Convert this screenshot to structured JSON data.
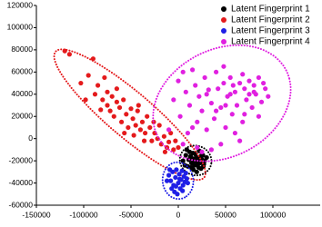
{
  "chart_data": {
    "type": "scatter",
    "xlim": [
      -150000,
      150000
    ],
    "ylim": [
      -60000,
      120000
    ],
    "xticks": [
      -150000,
      -100000,
      -50000,
      0,
      50000,
      100000
    ],
    "yticks": [
      -60000,
      -40000,
      -20000,
      0,
      20000,
      40000,
      60000,
      80000,
      100000,
      120000
    ],
    "legend": "upper right",
    "series": [
      {
        "name": "Latent Fingerprint 1",
        "color": "#000000",
        "x": [
          5000,
          8000,
          10000,
          12000,
          14000,
          15000,
          16000,
          18000,
          19000,
          20000,
          21000,
          22000,
          23000,
          24000,
          25000,
          26000,
          27000,
          28000,
          11000,
          13000,
          17000,
          19500,
          22500,
          9000,
          15500,
          24500,
          18500,
          20500,
          13500,
          26500,
          30000,
          7000,
          21500,
          16500,
          23500
        ],
        "values": [
          -20000,
          -15000,
          -25000,
          -12000,
          -22000,
          -18000,
          -28000,
          -14000,
          -20000,
          -24000,
          -17000,
          -11000,
          -22000,
          -27000,
          -19000,
          -15000,
          -23000,
          -20000,
          -19000,
          -16000,
          -24000,
          -30000,
          -19000,
          -10000,
          -13000,
          -12000,
          -17500,
          -21500,
          -26000,
          -25000,
          -17000,
          -24000,
          -26000,
          -20500,
          -16000
        ]
      },
      {
        "name": "Latent Fingerprint 2",
        "color": "#e41a1c",
        "x": [
          -120000,
          -115000,
          -103000,
          -95000,
          -90000,
          -88000,
          -85000,
          -80000,
          -78000,
          -75000,
          -72000,
          -70000,
          -68000,
          -65000,
          -62000,
          -60000,
          -58000,
          -55000,
          -53000,
          -50000,
          -48000,
          -45000,
          -43000,
          -40000,
          -38000,
          -35000,
          -33000,
          -30000,
          -28000,
          -25000,
          -22000,
          -20000,
          -18000,
          -15000,
          -12000,
          -10000,
          -8000,
          -5000,
          -3000,
          0,
          -65000,
          -82000,
          -98000,
          -57000,
          -42000,
          -26000,
          -14000,
          -36000,
          -47000,
          -75000
        ],
        "values": [
          79000,
          76000,
          50000,
          57000,
          72000,
          40000,
          48000,
          35000,
          55000,
          30000,
          25000,
          38000,
          20000,
          33000,
          28000,
          15000,
          35000,
          22000,
          10000,
          27000,
          18000,
          12000,
          25000,
          8000,
          15000,
          5000,
          20000,
          10000,
          -2000,
          5000,
          0,
          12000,
          -5000,
          2000,
          -8000,
          -3000,
          5000,
          -10000,
          -2000,
          -8000,
          45000,
          26000,
          35000,
          5000,
          30000,
          15000,
          -12000,
          -2000,
          3000,
          42000
        ]
      },
      {
        "name": "Latent Fingerprint 3",
        "color": "#1f1fe6",
        "x": [
          -10000,
          -8000,
          -6000,
          -5000,
          -3000,
          -2000,
          0,
          1000,
          2000,
          3000,
          4000,
          5000,
          6000,
          7000,
          8000,
          -7000,
          -4000,
          -1000,
          9000,
          -9000,
          1500,
          -2500,
          4500,
          10000,
          -12000
        ],
        "values": [
          -33000,
          -38000,
          -30000,
          -42000,
          -35000,
          -28000,
          -40000,
          -32000,
          -45000,
          -37000,
          -29000,
          -42000,
          -34000,
          -39000,
          -31000,
          -45000,
          -48000,
          -50000,
          -36000,
          -28000,
          -36500,
          -43000,
          -47000,
          -40000,
          -38000
        ]
      },
      {
        "name": "Latent Fingerprint 4",
        "color": "#e020e0",
        "x": [
          -10000,
          -5000,
          0,
          2000,
          5000,
          8000,
          10000,
          12000,
          15000,
          18000,
          20000,
          22000,
          25000,
          28000,
          30000,
          32000,
          35000,
          38000,
          40000,
          42000,
          45000,
          48000,
          50000,
          52000,
          55000,
          57000,
          60000,
          62000,
          65000,
          68000,
          70000,
          72000,
          75000,
          78000,
          80000,
          82000,
          85000,
          88000,
          90000,
          92000,
          95000,
          60000,
          45000,
          35000,
          25000,
          70000,
          55000,
          65000,
          48000,
          85000,
          15000,
          5000,
          30000,
          40000,
          75000,
          58000,
          68000,
          80000,
          20000,
          50000
        ],
        "values": [
          8000,
          35000,
          52000,
          20000,
          60000,
          42000,
          5000,
          30000,
          62000,
          48000,
          15000,
          38000,
          25000,
          55000,
          8000,
          44000,
          32000,
          18000,
          60000,
          45000,
          28000,
          50000,
          10000,
          38000,
          55000,
          22000,
          42000,
          30000,
          50000,
          15000,
          45000,
          35000,
          52000,
          28000,
          48000,
          40000,
          55000,
          33000,
          50000,
          45000,
          38000,
          5000,
          -5000,
          -10000,
          -12000,
          22000,
          40000,
          -2000,
          65000,
          20000,
          10000,
          -5000,
          40000,
          25000,
          40000,
          48000,
          58000,
          42000,
          -8000,
          30000
        ]
      }
    ]
  }
}
